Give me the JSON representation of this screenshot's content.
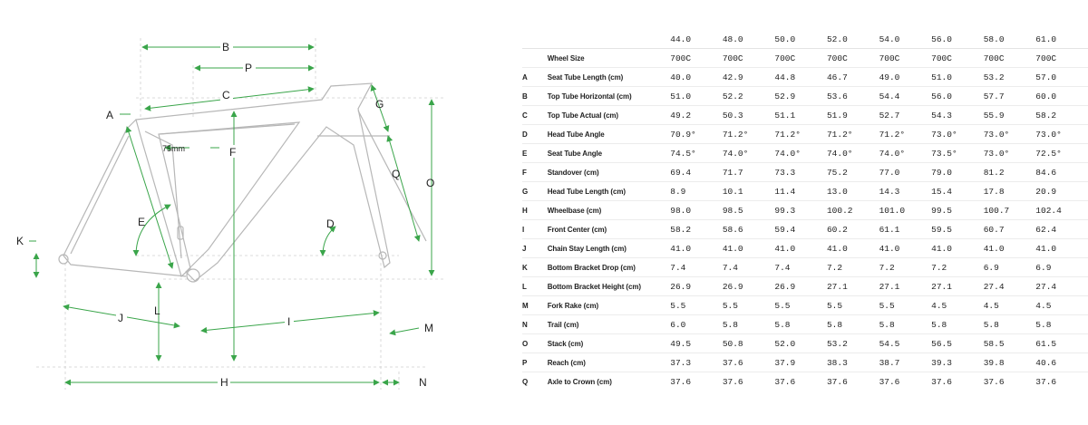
{
  "diagram": {
    "labels": {
      "A": "A",
      "B": "B",
      "C": "C",
      "D": "D",
      "E": "E",
      "F": "F",
      "G": "G",
      "H": "H",
      "I": "I",
      "J": "J",
      "K": "K",
      "L": "L",
      "M": "M",
      "N": "N",
      "O": "O",
      "P": "P",
      "Q": "Q"
    },
    "annotation_75mm": "75mm",
    "colors": {
      "arrow": "#3aa54a",
      "frame": "#b5b5b5",
      "guide": "#cfcfcf"
    }
  },
  "table": {
    "sizes": [
      "44.0",
      "48.0",
      "50.0",
      "52.0",
      "54.0",
      "56.0",
      "58.0",
      "61.0"
    ],
    "wheel_size": {
      "label": "Wheel Size",
      "values": [
        "700C",
        "700C",
        "700C",
        "700C",
        "700C",
        "700C",
        "700C",
        "700C"
      ]
    },
    "rows": [
      {
        "letter": "A",
        "label": "Seat Tube Length (cm)",
        "values": [
          "40.0",
          "42.9",
          "44.8",
          "46.7",
          "49.0",
          "51.0",
          "53.2",
          "57.0"
        ]
      },
      {
        "letter": "B",
        "label": "Top Tube Horizontal (cm)",
        "values": [
          "51.0",
          "52.2",
          "52.9",
          "53.6",
          "54.4",
          "56.0",
          "57.7",
          "60.0"
        ]
      },
      {
        "letter": "C",
        "label": "Top Tube Actual (cm)",
        "values": [
          "49.2",
          "50.3",
          "51.1",
          "51.9",
          "52.7",
          "54.3",
          "55.9",
          "58.2"
        ]
      },
      {
        "letter": "D",
        "label": "Head Tube Angle",
        "values": [
          "70.9°",
          "71.2°",
          "71.2°",
          "71.2°",
          "71.2°",
          "73.0°",
          "73.0°",
          "73.0°"
        ]
      },
      {
        "letter": "E",
        "label": "Seat Tube Angle",
        "values": [
          "74.5°",
          "74.0°",
          "74.0°",
          "74.0°",
          "74.0°",
          "73.5°",
          "73.0°",
          "72.5°"
        ]
      },
      {
        "letter": "F",
        "label": "Standover (cm)",
        "values": [
          "69.4",
          "71.7",
          "73.3",
          "75.2",
          "77.0",
          "79.0",
          "81.2",
          "84.6"
        ]
      },
      {
        "letter": "G",
        "label": "Head Tube Length (cm)",
        "values": [
          "8.9",
          "10.1",
          "11.4",
          "13.0",
          "14.3",
          "15.4",
          "17.8",
          "20.9"
        ]
      },
      {
        "letter": "H",
        "label": "Wheelbase (cm)",
        "values": [
          "98.0",
          "98.5",
          "99.3",
          "100.2",
          "101.0",
          "99.5",
          "100.7",
          "102.4"
        ]
      },
      {
        "letter": "I",
        "label": "Front Center (cm)",
        "values": [
          "58.2",
          "58.6",
          "59.4",
          "60.2",
          "61.1",
          "59.5",
          "60.7",
          "62.4"
        ]
      },
      {
        "letter": "J",
        "label": "Chain Stay Length (cm)",
        "values": [
          "41.0",
          "41.0",
          "41.0",
          "41.0",
          "41.0",
          "41.0",
          "41.0",
          "41.0"
        ]
      },
      {
        "letter": "K",
        "label": "Bottom Bracket Drop (cm)",
        "values": [
          "7.4",
          "7.4",
          "7.4",
          "7.2",
          "7.2",
          "7.2",
          "6.9",
          "6.9"
        ]
      },
      {
        "letter": "L",
        "label": "Bottom Bracket Height (cm)",
        "values": [
          "26.9",
          "26.9",
          "26.9",
          "27.1",
          "27.1",
          "27.1",
          "27.4",
          "27.4"
        ]
      },
      {
        "letter": "M",
        "label": "Fork Rake (cm)",
        "values": [
          "5.5",
          "5.5",
          "5.5",
          "5.5",
          "5.5",
          "4.5",
          "4.5",
          "4.5"
        ]
      },
      {
        "letter": "N",
        "label": "Trail (cm)",
        "values": [
          "6.0",
          "5.8",
          "5.8",
          "5.8",
          "5.8",
          "5.8",
          "5.8",
          "5.8"
        ]
      },
      {
        "letter": "O",
        "label": "Stack (cm)",
        "values": [
          "49.5",
          "50.8",
          "52.0",
          "53.2",
          "54.5",
          "56.5",
          "58.5",
          "61.5"
        ]
      },
      {
        "letter": "P",
        "label": "Reach (cm)",
        "values": [
          "37.3",
          "37.6",
          "37.9",
          "38.3",
          "38.7",
          "39.3",
          "39.8",
          "40.6"
        ]
      },
      {
        "letter": "Q",
        "label": "Axle to Crown (cm)",
        "values": [
          "37.6",
          "37.6",
          "37.6",
          "37.6",
          "37.6",
          "37.6",
          "37.6",
          "37.6"
        ]
      }
    ]
  }
}
